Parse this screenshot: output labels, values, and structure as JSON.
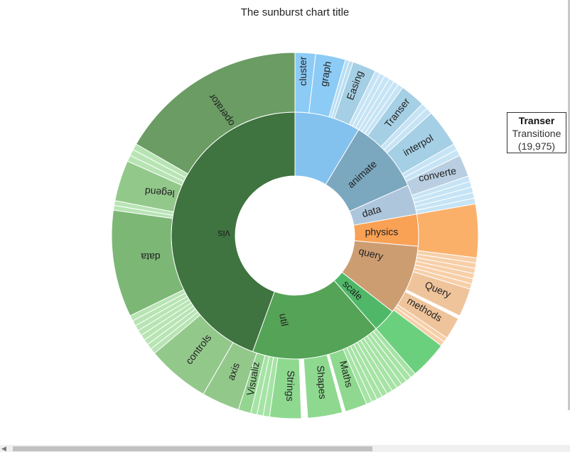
{
  "chart_data": {
    "type": "sunburst",
    "title": "The sunburst chart title",
    "level1": [
      {
        "name": "animate",
        "color": "#8ab8cf",
        "label": "animate"
      },
      {
        "name": "vis",
        "color": "#3f7340",
        "label": "vis"
      },
      {
        "name": "util",
        "color": "#5aa55c",
        "label": "util"
      }
    ],
    "level2": [
      {
        "name": "cluster",
        "color": "#83c2ef",
        "label": "cluster"
      },
      {
        "name": "animate",
        "color": "#7ba7bf",
        "label": "animate"
      },
      {
        "name": "data",
        "color": "#adc6dc",
        "label": "data"
      },
      {
        "name": "physics",
        "color": "#f9a154",
        "label": "physics"
      },
      {
        "name": "query",
        "color": "#cd9d72",
        "label": "query"
      },
      {
        "name": "scale",
        "color": "#4fb868",
        "label": "scale"
      },
      {
        "name": "util",
        "color": "#55a356",
        "label": "util"
      },
      {
        "name": "vis",
        "color": "#3f7340",
        "label": "vis"
      }
    ],
    "level3": [
      {
        "name": "cluster",
        "color": "#8ccbf6",
        "label": "cluster"
      },
      {
        "name": "graph",
        "color": "#8ccbf6",
        "label": "graph"
      },
      {
        "name": "Easing",
        "color": "#a5cfe4",
        "label": "Easing"
      },
      {
        "name": "Transer",
        "color": "#a5cfe4",
        "label": "Transer"
      },
      {
        "name": "interpol",
        "color": "#a5cfe4",
        "label": "interpol"
      },
      {
        "name": "converte",
        "color": "#b9cfe1",
        "label": "converte"
      },
      {
        "name": "physics",
        "color": "#fbb06a",
        "label": ""
      },
      {
        "name": "Query",
        "color": "#efc49b",
        "label": "Query"
      },
      {
        "name": "methods",
        "color": "#efc49b",
        "label": "methods"
      },
      {
        "name": "scale",
        "color": "#6bd07d",
        "label": ""
      },
      {
        "name": "Maths",
        "color": "#8ed98f",
        "label": "Maths"
      },
      {
        "name": "Shapes",
        "color": "#8ed98f",
        "label": "Shapes"
      },
      {
        "name": "Strings",
        "color": "#8ed98f",
        "label": "Strings"
      },
      {
        "name": "Visualiz",
        "color": "#95d592",
        "label": "Visualiz"
      },
      {
        "name": "axis",
        "color": "#93c88b",
        "label": "axis"
      },
      {
        "name": "controls",
        "color": "#93c88b",
        "label": "controls"
      },
      {
        "name": "data",
        "color": "#7cb776",
        "label": "data"
      },
      {
        "name": "legend",
        "color": "#93c88b",
        "label": "legend"
      },
      {
        "name": "operator",
        "color": "#6a9c63",
        "label": "operator"
      }
    ],
    "tooltip": {
      "title": "Transer",
      "line1": "Transitione",
      "line2": "(19,975)"
    }
  }
}
